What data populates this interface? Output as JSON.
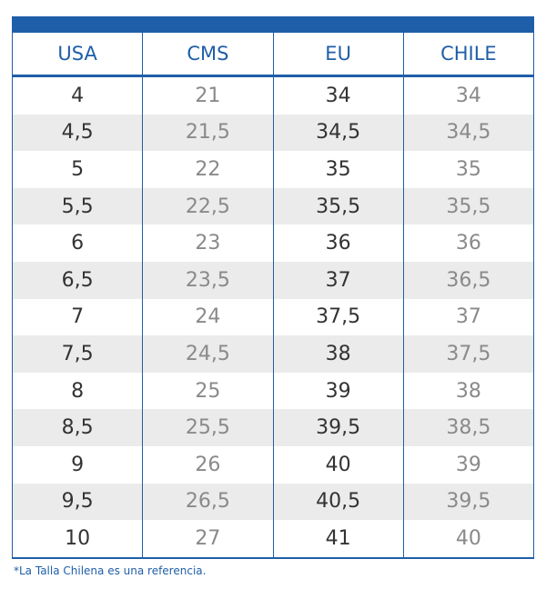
{
  "table": {
    "header": [
      "USA",
      "CMS",
      "EU",
      "CHILE"
    ],
    "rows": [
      [
        "4",
        "21",
        "34",
        "34"
      ],
      [
        "4,5",
        "21,5",
        "34,5",
        "34,5"
      ],
      [
        "5",
        "22",
        "35",
        "35"
      ],
      [
        "5,5",
        "22,5",
        "35,5",
        "35,5"
      ],
      [
        "6",
        "23",
        "36",
        "36"
      ],
      [
        "6,5",
        "23,5",
        "37",
        "36,5"
      ],
      [
        "7",
        "24",
        "37,5",
        "37"
      ],
      [
        "7,5",
        "24,5",
        "38",
        "37,5"
      ],
      [
        "8",
        "25",
        "39",
        "38"
      ],
      [
        "8,5",
        "25,5",
        "39,5",
        "38,5"
      ],
      [
        "9",
        "26",
        "40",
        "39"
      ],
      [
        "9,5",
        "26,5",
        "40,5",
        "39,5"
      ],
      [
        "10",
        "27",
        "41",
        "40"
      ]
    ]
  },
  "footnote": "*La Talla Chilena es una referencia."
}
